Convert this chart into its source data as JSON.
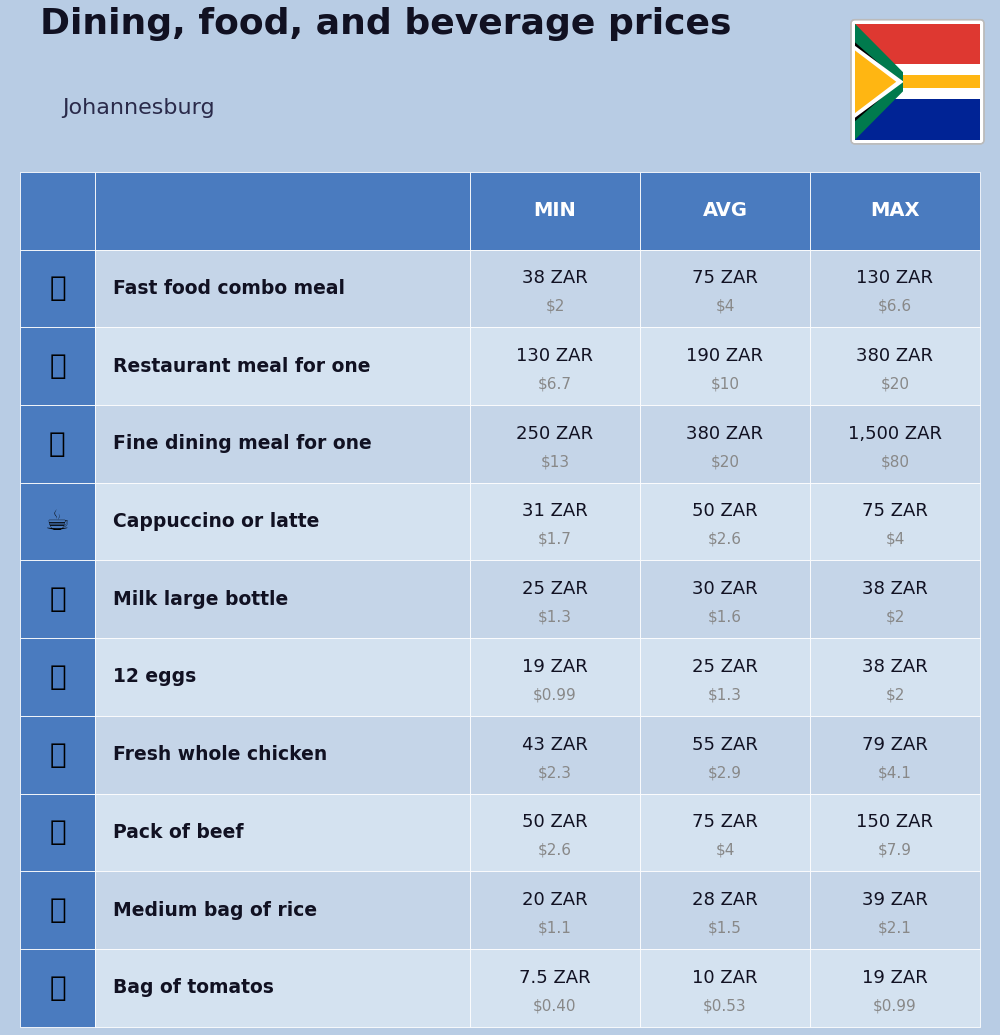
{
  "title": "Dining, food, and beverage prices",
  "subtitle": "Johannesburg",
  "background_color": "#b8cce4",
  "header_color": "#4a7bbf",
  "header_text_color": "#ffffff",
  "row_color_odd": "#c5d5e8",
  "row_color_even": "#d4e2f0",
  "columns": [
    "MIN",
    "AVG",
    "MAX"
  ],
  "rows": [
    {
      "label": "Fast food combo meal",
      "emoji": "🍔",
      "min_zar": "38 ZAR",
      "min_usd": "$2",
      "avg_zar": "75 ZAR",
      "avg_usd": "$4",
      "max_zar": "130 ZAR",
      "max_usd": "$6.6"
    },
    {
      "label": "Restaurant meal for one",
      "emoji": "🍳",
      "min_zar": "130 ZAR",
      "min_usd": "$6.7",
      "avg_zar": "190 ZAR",
      "avg_usd": "$10",
      "max_zar": "380 ZAR",
      "max_usd": "$20"
    },
    {
      "label": "Fine dining meal for one",
      "emoji": "🍽️",
      "min_zar": "250 ZAR",
      "min_usd": "$13",
      "avg_zar": "380 ZAR",
      "avg_usd": "$20",
      "max_zar": "1,500 ZAR",
      "max_usd": "$80"
    },
    {
      "label": "Cappuccino or latte",
      "emoji": "☕",
      "min_zar": "31 ZAR",
      "min_usd": "$1.7",
      "avg_zar": "50 ZAR",
      "avg_usd": "$2.6",
      "max_zar": "75 ZAR",
      "max_usd": "$4"
    },
    {
      "label": "Milk large bottle",
      "emoji": "🥛",
      "min_zar": "25 ZAR",
      "min_usd": "$1.3",
      "avg_zar": "30 ZAR",
      "avg_usd": "$1.6",
      "max_zar": "38 ZAR",
      "max_usd": "$2"
    },
    {
      "label": "12 eggs",
      "emoji": "🥚",
      "min_zar": "19 ZAR",
      "min_usd": "$0.99",
      "avg_zar": "25 ZAR",
      "avg_usd": "$1.3",
      "max_zar": "38 ZAR",
      "max_usd": "$2"
    },
    {
      "label": "Fresh whole chicken",
      "emoji": "🍗",
      "min_zar": "43 ZAR",
      "min_usd": "$2.3",
      "avg_zar": "55 ZAR",
      "avg_usd": "$2.9",
      "max_zar": "79 ZAR",
      "max_usd": "$4.1"
    },
    {
      "label": "Pack of beef",
      "emoji": "🥩",
      "min_zar": "50 ZAR",
      "min_usd": "$2.6",
      "avg_zar": "75 ZAR",
      "avg_usd": "$4",
      "max_zar": "150 ZAR",
      "max_usd": "$7.9"
    },
    {
      "label": "Medium bag of rice",
      "emoji": "🍚",
      "min_zar": "20 ZAR",
      "min_usd": "$1.1",
      "avg_zar": "28 ZAR",
      "avg_usd": "$1.5",
      "max_zar": "39 ZAR",
      "max_usd": "$2.1"
    },
    {
      "label": "Bag of tomatos",
      "emoji": "🍅",
      "min_zar": "7.5 ZAR",
      "min_usd": "$0.40",
      "avg_zar": "10 ZAR",
      "avg_usd": "$0.53",
      "max_zar": "19 ZAR",
      "max_usd": "$0.99"
    }
  ]
}
